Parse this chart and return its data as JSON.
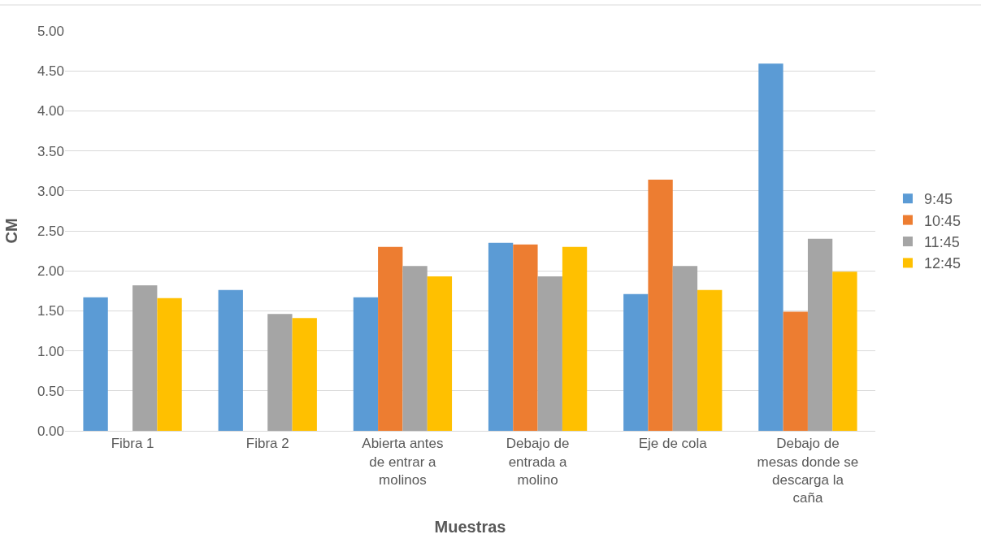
{
  "chart_data": {
    "type": "bar",
    "xlabel": "Muestras",
    "ylabel": "CM",
    "categories": [
      "Fibra 1",
      "Fibra 2",
      "Abierta antes de entrar a molinos",
      "Debajo de entrada a molino",
      "Eje de cola",
      "Debajo de mesas donde se descarga la caña"
    ],
    "series": [
      {
        "name": "9:45",
        "color": "#5b9bd5",
        "values": [
          1.67,
          1.76,
          1.67,
          2.35,
          1.71,
          4.59
        ]
      },
      {
        "name": "10:45",
        "color": "#ed7d31",
        "values": [
          null,
          null,
          2.3,
          2.33,
          3.14,
          1.49
        ]
      },
      {
        "name": "11:45",
        "color": "#a5a5a5",
        "values": [
          1.82,
          1.46,
          2.06,
          1.93,
          2.06,
          2.4
        ]
      },
      {
        "name": "12:45",
        "color": "#ffc000",
        "values": [
          1.66,
          1.41,
          1.93,
          2.3,
          1.76,
          1.99
        ]
      }
    ],
    "ylim": [
      0,
      5
    ],
    "yticks": [
      {
        "value": 0,
        "label": "0.00"
      },
      {
        "value": 0.5,
        "label": "0.50"
      },
      {
        "value": 1,
        "label": "1.00"
      },
      {
        "value": 1.5,
        "label": "1.50"
      },
      {
        "value": 2,
        "label": "2.00"
      },
      {
        "value": 2.5,
        "label": "2.50"
      },
      {
        "value": 3,
        "label": "3.00"
      },
      {
        "value": 3.5,
        "label": "3.50"
      },
      {
        "value": 4,
        "label": "4.00"
      },
      {
        "value": 4.5,
        "label": "4.50"
      },
      {
        "value": 5,
        "label": "5.00"
      }
    ],
    "grid": "y",
    "legend": "right"
  }
}
